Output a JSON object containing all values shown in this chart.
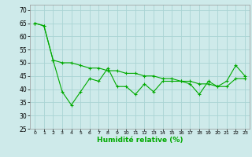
{
  "title": "",
  "xlabel": "Humidité relative (%)",
  "ylabel": "",
  "background_color": "#ceeaea",
  "grid_color": "#aad4d4",
  "line_color": "#00aa00",
  "xlim": [
    -0.5,
    23.5
  ],
  "ylim": [
    25,
    72
  ],
  "yticks": [
    25,
    30,
    35,
    40,
    45,
    50,
    55,
    60,
    65,
    70
  ],
  "xticks": [
    0,
    1,
    2,
    3,
    4,
    5,
    6,
    7,
    8,
    9,
    10,
    11,
    12,
    13,
    14,
    15,
    16,
    17,
    18,
    19,
    20,
    21,
    22,
    23
  ],
  "series1": [
    65,
    64,
    51,
    39,
    34,
    39,
    44,
    43,
    48,
    41,
    41,
    38,
    42,
    39,
    43,
    43,
    43,
    42,
    38,
    43,
    41,
    43,
    49,
    45
  ],
  "series2": [
    65,
    64,
    51,
    50,
    50,
    49,
    48,
    48,
    47,
    47,
    46,
    46,
    45,
    45,
    44,
    44,
    43,
    43,
    42,
    42,
    41,
    41,
    44,
    44
  ]
}
